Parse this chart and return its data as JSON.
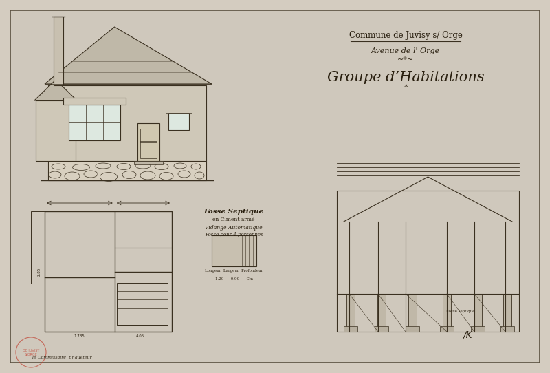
{
  "bg_color": "#d4ccc0",
  "paper_color": "#cfc8bc",
  "border_color": "#5a5040",
  "line_color": "#3a3020",
  "text_color": "#2a2010",
  "title1": "Commune de Juvisy s/ Orge",
  "title2": "Avenue de l' Orge",
  "title3": "Groupe d’Habitations",
  "fosse_text1": "Fosse Septique",
  "fosse_text2": "en Ciment armé",
  "fosse_text3": "Vidange Automatique",
  "fosse_text4": "Fosse pour 4 personnes",
  "stamp_color": "#c04030"
}
